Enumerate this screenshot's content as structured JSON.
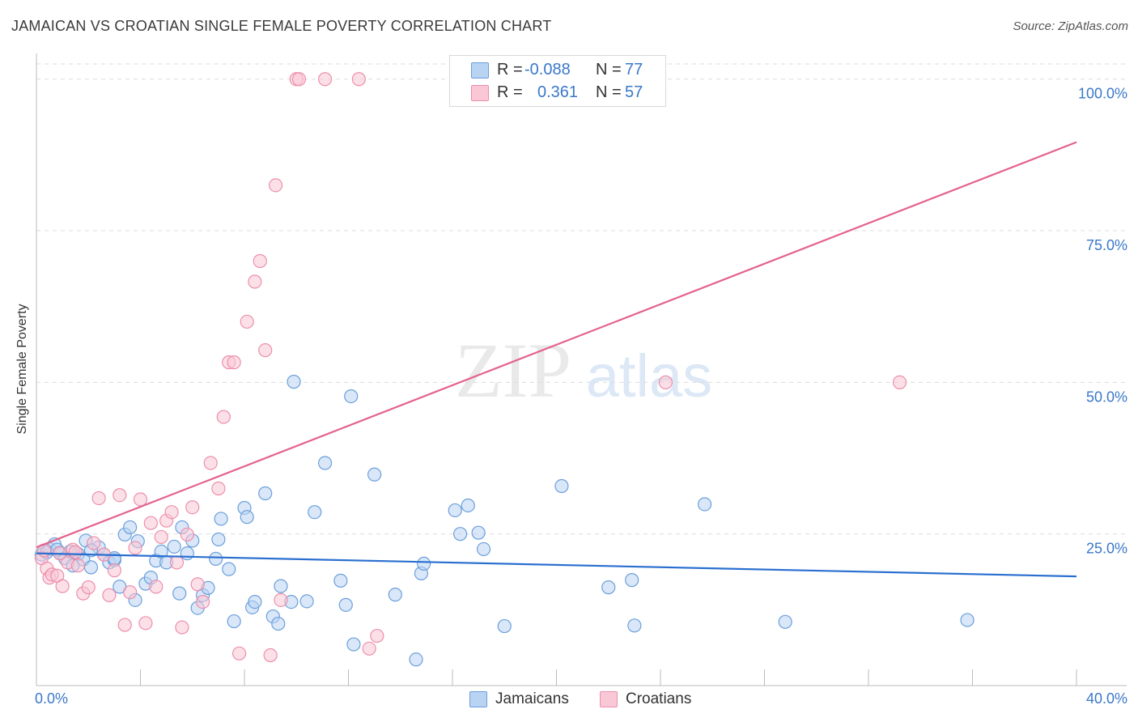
{
  "title": "JAMAICAN VS CROATIAN SINGLE FEMALE POVERTY CORRELATION CHART",
  "source": "Source: ZipAtlas.com",
  "watermark": {
    "zip": "ZIP",
    "atlas": "atlas"
  },
  "colors": {
    "jamaican_fill": "#b9d3f3",
    "jamaican_stroke": "#6b9fdc",
    "jamaican_line": "#2a6fd0",
    "croatian_fill": "#f9c7d6",
    "croatian_stroke": "#ec8fab",
    "croatian_line": "#e4628d",
    "tick_text": "#3a78c9",
    "grid": "#dddddd"
  },
  "legend_top": {
    "rows": [
      {
        "r_label": "R =",
        "r_value": "-0.088",
        "n_label": "N =",
        "n_value": "77"
      },
      {
        "r_label": "R =",
        "r_value": "0.361",
        "n_label": "N =",
        "n_value": "57"
      }
    ]
  },
  "legend_bottom": {
    "jamaicans": "Jamaicans",
    "croatians": "Croatians"
  },
  "chart_data": {
    "type": "scatter",
    "title": "JAMAICAN VS CROATIAN SINGLE FEMALE POVERTY CORRELATION CHART",
    "xlabel": "",
    "ylabel": "Single Female Poverty",
    "xlim": [
      0,
      40
    ],
    "ylim": [
      0,
      102.5
    ],
    "x_tick_labels": [
      "0.0%",
      "40.0%"
    ],
    "y_ticks": [
      25,
      50,
      75,
      100
    ],
    "y_tick_labels": [
      "25.0%",
      "50.0%",
      "75.0%",
      "100.0%"
    ],
    "grid": true,
    "series": [
      {
        "name": "Jamaicans",
        "R": -0.088,
        "N": 77,
        "trend": {
          "x": [
            0,
            40
          ],
          "y": [
            21.8,
            18.0
          ]
        },
        "points": [
          [
            0.2,
            21.6
          ],
          [
            0.5,
            22.5
          ],
          [
            0.7,
            23.3
          ],
          [
            0.9,
            21.9
          ],
          [
            1.1,
            21.0
          ],
          [
            1.4,
            19.8
          ],
          [
            1.6,
            21.7
          ],
          [
            1.8,
            20.8
          ],
          [
            2.1,
            19.5
          ],
          [
            2.4,
            22.8
          ],
          [
            2.6,
            21.6
          ],
          [
            2.8,
            20.3
          ],
          [
            3.0,
            20.7
          ],
          [
            3.2,
            16.3
          ],
          [
            3.4,
            24.9
          ],
          [
            3.6,
            26.1
          ],
          [
            3.8,
            14.1
          ],
          [
            3.9,
            23.8
          ],
          [
            4.2,
            16.8
          ],
          [
            4.4,
            17.8
          ],
          [
            4.6,
            20.6
          ],
          [
            4.8,
            22.1
          ],
          [
            5.0,
            20.3
          ],
          [
            5.3,
            22.9
          ],
          [
            5.5,
            15.2
          ],
          [
            5.6,
            26.1
          ],
          [
            5.8,
            21.8
          ],
          [
            6.0,
            23.9
          ],
          [
            6.2,
            12.8
          ],
          [
            6.4,
            14.9
          ],
          [
            6.6,
            16.1
          ],
          [
            6.9,
            20.9
          ],
          [
            7.0,
            24.1
          ],
          [
            7.1,
            27.5
          ],
          [
            7.4,
            19.2
          ],
          [
            7.6,
            10.6
          ],
          [
            8.0,
            29.3
          ],
          [
            8.1,
            27.8
          ],
          [
            8.3,
            12.9
          ],
          [
            8.4,
            13.8
          ],
          [
            8.8,
            31.7
          ],
          [
            9.1,
            11.4
          ],
          [
            9.3,
            10.2
          ],
          [
            9.4,
            16.4
          ],
          [
            9.8,
            13.8
          ],
          [
            10.4,
            13.9
          ],
          [
            10.7,
            28.6
          ],
          [
            11.1,
            36.7
          ],
          [
            11.7,
            17.3
          ],
          [
            11.9,
            13.3
          ],
          [
            12.1,
            47.7
          ],
          [
            12.2,
            6.8
          ],
          [
            13.0,
            34.8
          ],
          [
            13.8,
            15.0
          ],
          [
            14.6,
            4.3
          ],
          [
            14.8,
            18.5
          ],
          [
            14.9,
            20.1
          ],
          [
            16.1,
            28.9
          ],
          [
            16.3,
            25.0
          ],
          [
            16.6,
            29.7
          ],
          [
            17.0,
            25.2
          ],
          [
            17.2,
            22.5
          ],
          [
            18.0,
            9.8
          ],
          [
            20.2,
            32.9
          ],
          [
            22.0,
            16.2
          ],
          [
            22.9,
            17.4
          ],
          [
            23.0,
            9.9
          ],
          [
            25.7,
            29.9
          ],
          [
            28.8,
            10.5
          ],
          [
            35.8,
            10.8
          ],
          [
            9.9,
            50.1
          ],
          [
            1.9,
            23.9
          ],
          [
            3.0,
            21.0
          ],
          [
            2.1,
            22.3
          ],
          [
            0.4,
            22.0
          ],
          [
            0.8,
            22.4
          ],
          [
            1.3,
            22.1
          ]
        ]
      },
      {
        "name": "Croatians",
        "R": 0.361,
        "N": 57,
        "trend": {
          "x": [
            0,
            40
          ],
          "y": [
            22.8,
            89.6
          ]
        },
        "points": [
          [
            0.2,
            21.0
          ],
          [
            0.4,
            19.3
          ],
          [
            0.5,
            17.8
          ],
          [
            0.6,
            18.3
          ],
          [
            0.8,
            18.1
          ],
          [
            1.0,
            16.4
          ],
          [
            1.2,
            20.3
          ],
          [
            1.4,
            22.4
          ],
          [
            1.6,
            19.8
          ],
          [
            1.8,
            15.2
          ],
          [
            2.0,
            16.2
          ],
          [
            2.2,
            23.5
          ],
          [
            2.4,
            30.9
          ],
          [
            2.6,
            21.6
          ],
          [
            2.8,
            14.9
          ],
          [
            3.0,
            19.0
          ],
          [
            3.2,
            31.4
          ],
          [
            3.4,
            10.0
          ],
          [
            3.6,
            15.4
          ],
          [
            3.8,
            22.7
          ],
          [
            4.0,
            30.7
          ],
          [
            4.2,
            10.3
          ],
          [
            4.4,
            26.8
          ],
          [
            4.6,
            16.3
          ],
          [
            4.8,
            24.5
          ],
          [
            5.0,
            27.2
          ],
          [
            5.2,
            28.6
          ],
          [
            5.4,
            20.3
          ],
          [
            5.6,
            9.6
          ],
          [
            5.8,
            24.9
          ],
          [
            6.0,
            29.4
          ],
          [
            6.2,
            16.7
          ],
          [
            6.4,
            13.8
          ],
          [
            6.7,
            36.7
          ],
          [
            7.0,
            32.5
          ],
          [
            7.2,
            44.3
          ],
          [
            7.4,
            53.3
          ],
          [
            7.6,
            53.3
          ],
          [
            7.8,
            5.3
          ],
          [
            8.1,
            60.0
          ],
          [
            8.4,
            66.6
          ],
          [
            8.6,
            70.0
          ],
          [
            8.8,
            55.3
          ],
          [
            9.0,
            5.0
          ],
          [
            9.2,
            82.5
          ],
          [
            9.4,
            14.1
          ],
          [
            10.0,
            100.0
          ],
          [
            10.1,
            100.0
          ],
          [
            11.1,
            100.0
          ],
          [
            12.4,
            100.0
          ],
          [
            12.8,
            6.1
          ],
          [
            13.1,
            8.2
          ],
          [
            24.2,
            50.0
          ],
          [
            33.2,
            50.0
          ],
          [
            0.3,
            22.3
          ],
          [
            0.9,
            21.8
          ],
          [
            1.5,
            22.0
          ]
        ]
      }
    ]
  }
}
